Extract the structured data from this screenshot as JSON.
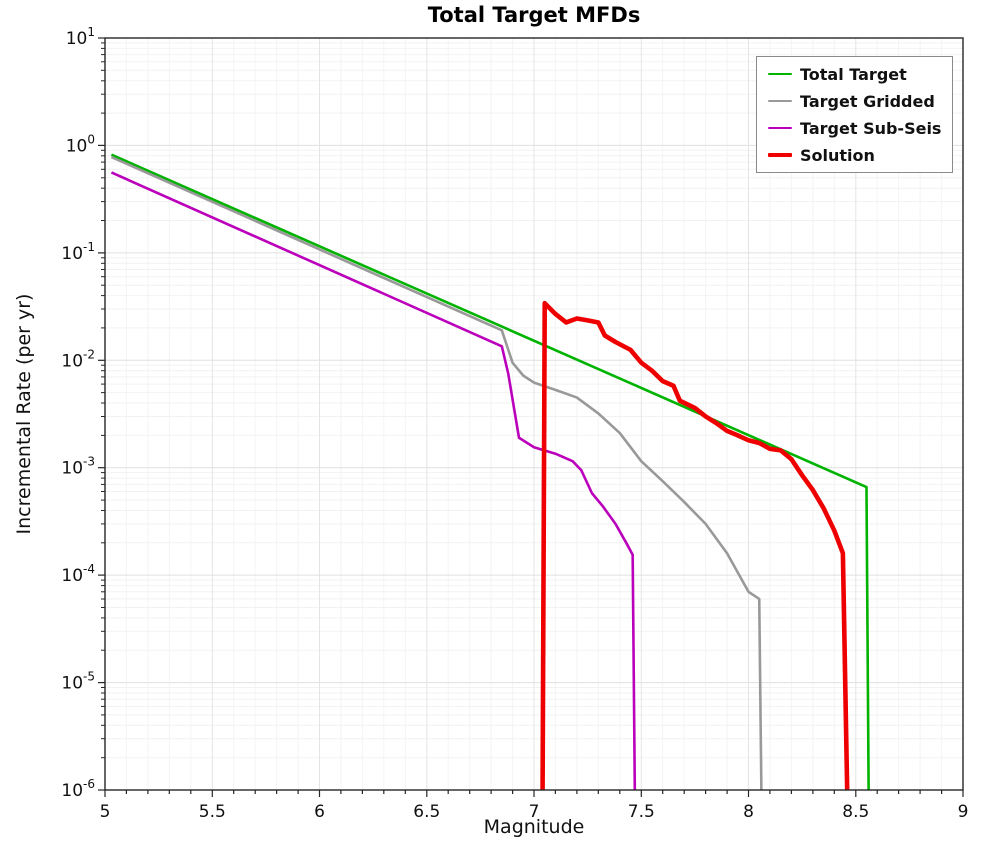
{
  "chart_data": {
    "type": "line",
    "title": "Total Target MFDs",
    "xlabel": "Magnitude",
    "ylabel": "Incremental Rate (per yr)",
    "xlim": [
      5,
      9
    ],
    "ylog_exp_lim": [
      -6,
      1
    ],
    "xticks": [
      5,
      5.5,
      6,
      6.5,
      7,
      7.5,
      8,
      8.5,
      9
    ],
    "yticks_exponents": [
      1,
      0,
      -1,
      -2,
      -3,
      -4,
      -5,
      -6
    ],
    "grid": true,
    "legend_position": "upper right",
    "yscale": "log",
    "series": [
      {
        "name": "Total Target",
        "color": "#00b300",
        "lw": 2.6,
        "points": [
          [
            5.03,
            0.82
          ],
          [
            8.55,
            0.00066
          ],
          [
            8.56,
            1e-06
          ]
        ]
      },
      {
        "name": "Target Gridded",
        "color": "#999999",
        "lw": 2.6,
        "points": [
          [
            5.03,
            0.78
          ],
          [
            6.85,
            0.019
          ],
          [
            6.9,
            0.0095
          ],
          [
            6.95,
            0.0072
          ],
          [
            7.0,
            0.0062
          ],
          [
            7.1,
            0.0053
          ],
          [
            7.2,
            0.0045
          ],
          [
            7.3,
            0.0032
          ],
          [
            7.4,
            0.0021
          ],
          [
            7.5,
            0.00115
          ],
          [
            7.6,
            0.00075
          ],
          [
            7.7,
            0.00048
          ],
          [
            7.8,
            0.0003
          ],
          [
            7.9,
            0.00016
          ],
          [
            8.0,
            7e-05
          ],
          [
            8.05,
            6e-05
          ],
          [
            8.06,
            1e-06
          ]
        ]
      },
      {
        "name": "Target Sub-Seis",
        "color": "#bb00bb",
        "lw": 2.6,
        "points": [
          [
            5.03,
            0.56
          ],
          [
            6.85,
            0.0135
          ],
          [
            6.88,
            0.0075
          ],
          [
            6.93,
            0.0019
          ],
          [
            7.0,
            0.00155
          ],
          [
            7.1,
            0.00135
          ],
          [
            7.18,
            0.00115
          ],
          [
            7.22,
            0.00095
          ],
          [
            7.27,
            0.00058
          ],
          [
            7.32,
            0.00044
          ],
          [
            7.38,
            0.0003
          ],
          [
            7.43,
            0.0002
          ],
          [
            7.46,
            0.000155
          ],
          [
            7.47,
            1e-06
          ]
        ]
      },
      {
        "name": "Solution",
        "color": "#ee0000",
        "lw": 4.6,
        "points": [
          [
            7.04,
            1e-06
          ],
          [
            7.05,
            0.034
          ],
          [
            7.1,
            0.027
          ],
          [
            7.15,
            0.0225
          ],
          [
            7.2,
            0.0245
          ],
          [
            7.25,
            0.0235
          ],
          [
            7.3,
            0.0225
          ],
          [
            7.33,
            0.017
          ],
          [
            7.38,
            0.0148
          ],
          [
            7.45,
            0.0125
          ],
          [
            7.5,
            0.0095
          ],
          [
            7.55,
            0.008
          ],
          [
            7.6,
            0.0064
          ],
          [
            7.65,
            0.0058
          ],
          [
            7.68,
            0.0042
          ],
          [
            7.75,
            0.0036
          ],
          [
            7.8,
            0.003
          ],
          [
            7.85,
            0.0026
          ],
          [
            7.9,
            0.0022
          ],
          [
            7.95,
            0.002
          ],
          [
            8.0,
            0.0018
          ],
          [
            8.05,
            0.0017
          ],
          [
            8.1,
            0.0015
          ],
          [
            8.15,
            0.00145
          ],
          [
            8.2,
            0.0012
          ],
          [
            8.25,
            0.00085
          ],
          [
            8.3,
            0.00062
          ],
          [
            8.35,
            0.00042
          ],
          [
            8.4,
            0.00026
          ],
          [
            8.44,
            0.00016
          ],
          [
            8.46,
            1e-06
          ]
        ]
      }
    ]
  }
}
